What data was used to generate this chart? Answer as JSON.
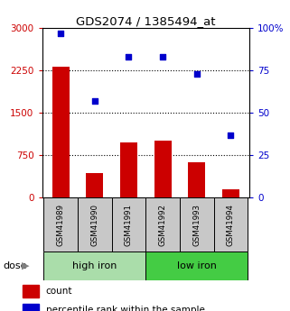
{
  "title": "GDS2074 / 1385494_at",
  "samples": [
    "GSM41989",
    "GSM41990",
    "GSM41991",
    "GSM41992",
    "GSM41993",
    "GSM41994"
  ],
  "bar_values": [
    2310,
    430,
    970,
    1010,
    620,
    150
  ],
  "scatter_values": [
    97,
    57,
    83,
    83,
    73,
    37
  ],
  "bar_color": "#cc0000",
  "scatter_color": "#0000cc",
  "ylim_left": [
    0,
    3000
  ],
  "ylim_right": [
    0,
    100
  ],
  "yticks_left": [
    0,
    750,
    1500,
    2250,
    3000
  ],
  "ytick_labels_left": [
    "0",
    "750",
    "1500",
    "2250",
    "3000"
  ],
  "yticks_right": [
    0,
    25,
    50,
    75,
    100
  ],
  "ytick_labels_right": [
    "0",
    "25",
    "50",
    "75",
    "100%"
  ],
  "hlines": [
    750,
    1500,
    2250
  ],
  "group_labels": [
    "high iron",
    "low iron"
  ],
  "group_colors": [
    "#aaddaa",
    "#44cc44"
  ],
  "group_split": 3,
  "dose_label": "dose",
  "legend_count": "count",
  "legend_pct": "percentile rank within the sample",
  "bar_width": 0.5,
  "sample_box_color": "#c8c8c8",
  "bg_color": "#ffffff"
}
